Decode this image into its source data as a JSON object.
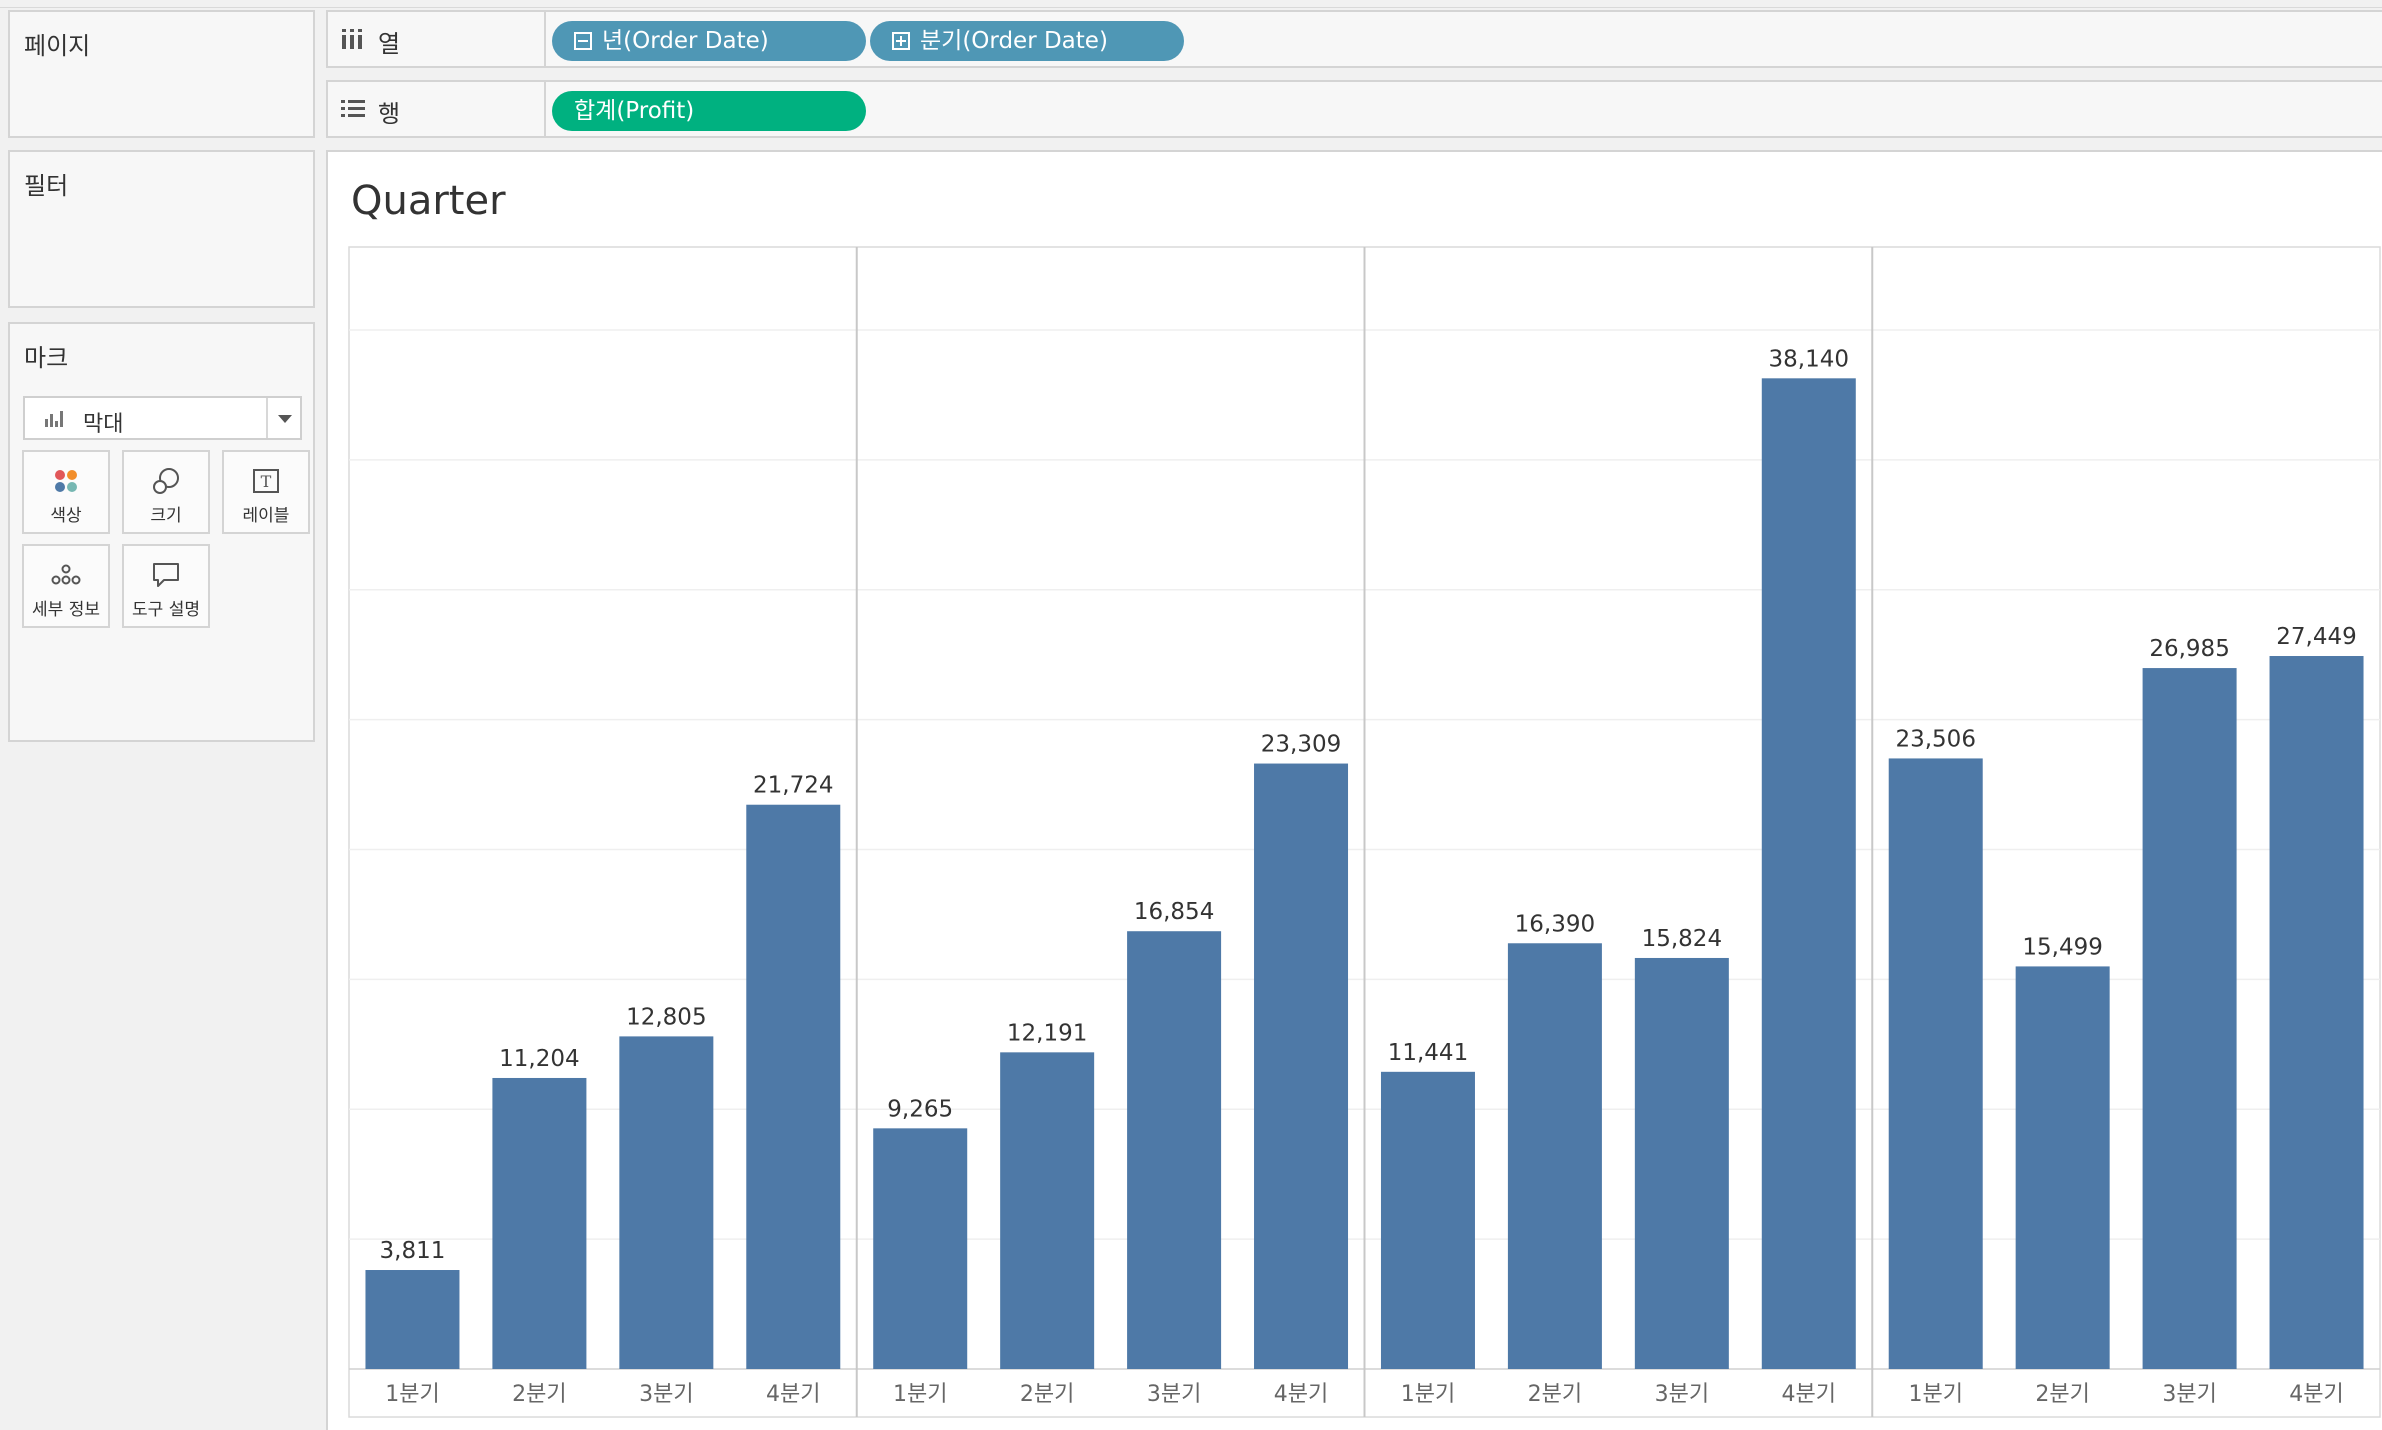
{
  "left_panel": {
    "pages_title": "페이지",
    "filters_title": "필터",
    "marks_title": "마크",
    "mark_type": "막대",
    "mark_buttons": {
      "color": "색상",
      "size": "크기",
      "label": "레이블",
      "detail": "세부 정보",
      "tooltip": "도구 설명"
    }
  },
  "shelves": {
    "columns_label": "열",
    "rows_label": "행",
    "column_pills": [
      "년(Order Date)",
      "분기(Order Date)"
    ],
    "row_pills": [
      "합계(Profit)"
    ]
  },
  "view": {
    "title": "Quarter"
  },
  "colors": {
    "bar": "#4e79a7",
    "pill_blue": "#4f97b5",
    "pill_green": "#00b180"
  },
  "chart_data": {
    "type": "bar",
    "panes": [
      {
        "categories": [
          "1분기",
          "2분기",
          "3분기",
          "4분기"
        ],
        "values": [
          3811,
          11204,
          12805,
          21724
        ],
        "labels": [
          "3,811",
          "11,204",
          "12,805",
          "21,724"
        ]
      },
      {
        "categories": [
          "1분기",
          "2분기",
          "3분기",
          "4분기"
        ],
        "values": [
          9265,
          12191,
          16854,
          23309
        ],
        "labels": [
          "9,265",
          "12,191",
          "16,854",
          "23,309"
        ]
      },
      {
        "categories": [
          "1분기",
          "2분기",
          "3분기",
          "4분기"
        ],
        "values": [
          11441,
          16390,
          15824,
          38140
        ],
        "labels": [
          "11,441",
          "16,390",
          "15,824",
          "38,140"
        ]
      },
      {
        "categories": [
          "1분기",
          "2분기",
          "3분기",
          "4분기"
        ],
        "values": [
          23506,
          15499,
          26985,
          27449
        ],
        "labels": [
          "23,506",
          "15,499",
          "26,985",
          "27,449"
        ]
      }
    ],
    "ylim": [
      0,
      40000
    ],
    "grid": true,
    "title": "Quarter"
  }
}
